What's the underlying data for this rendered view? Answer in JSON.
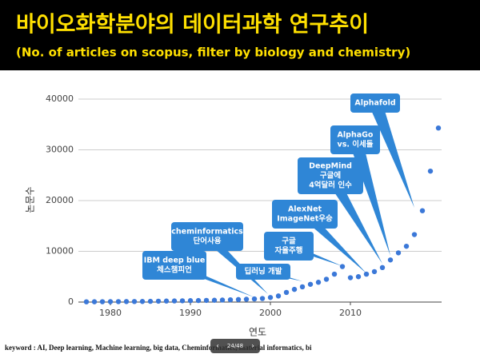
{
  "header": {
    "title": "바이오화학분야의 데이터과학 연구추이",
    "subtitle": "(No. of articles on scopus, filter by biology and chemistry)"
  },
  "chart_data": {
    "type": "scatter",
    "x": [
      1977,
      1978,
      1979,
      1980,
      1981,
      1982,
      1983,
      1984,
      1985,
      1986,
      1987,
      1988,
      1989,
      1990,
      1991,
      1992,
      1993,
      1994,
      1995,
      1996,
      1997,
      1998,
      1999,
      2000,
      2001,
      2002,
      2003,
      2004,
      2005,
      2006,
      2007,
      2008,
      2009,
      2010,
      2011,
      2012,
      2013,
      2014,
      2015,
      2016,
      2017,
      2018,
      2019,
      2020,
      2021
    ],
    "values": [
      50,
      60,
      70,
      80,
      90,
      100,
      110,
      120,
      140,
      170,
      200,
      220,
      250,
      280,
      300,
      330,
      360,
      400,
      450,
      500,
      550,
      620,
      700,
      900,
      1200,
      1900,
      2500,
      3000,
      3500,
      3900,
      4500,
      5500,
      7000,
      4800,
      5000,
      5500,
      6000,
      6800,
      8300,
      9700,
      11000,
      13300,
      18000,
      25800,
      34300
    ],
    "color": "#3b78d8",
    "xlim": [
      1976,
      2022
    ],
    "ylim": [
      0,
      40000
    ],
    "xticks": [
      1980,
      1990,
      2000,
      2010
    ],
    "yticks": [
      0,
      10000,
      20000,
      30000,
      40000
    ],
    "x_label": "연도",
    "y_label": "논문수",
    "grid": true,
    "annotations": [
      {
        "lines": [
          "IBM deep blue",
          "체스챔피언"
        ]
      },
      {
        "lines": [
          "cheminformatics",
          "단어사용"
        ]
      },
      {
        "lines": [
          "딥러닝 개발"
        ]
      },
      {
        "lines": [
          "구글",
          "자율주행"
        ]
      },
      {
        "lines": [
          "AlexNet",
          "ImageNet우승"
        ]
      },
      {
        "lines": [
          "DeepMind",
          "구글에",
          "4억달러 인수"
        ]
      },
      {
        "lines": [
          "AlphaGo",
          "vs. 이세돌"
        ]
      },
      {
        "lines": [
          "Alphafold"
        ]
      }
    ]
  },
  "footer": {
    "keyword": "keyword : AI, Deep learning, Machine learning, big data, Cheminformatics, material informatics, bi",
    "page": "24/48"
  }
}
